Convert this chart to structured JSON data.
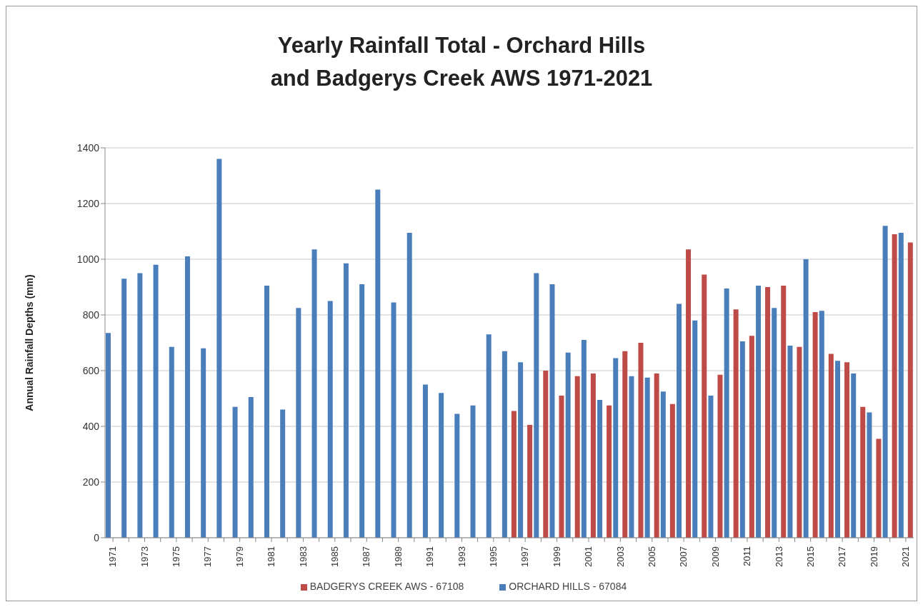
{
  "chart_data": {
    "type": "bar",
    "title": "Yearly Rainfall Total - Orchard Hills\nand Badgerys Creek AWS 1971-2021",
    "ylabel": "Annual Rainfall Depths (mm)",
    "categories": [
      "1971",
      null,
      "1973",
      null,
      "1975",
      null,
      "1977",
      null,
      "1979",
      null,
      "1981",
      null,
      "1983",
      null,
      "1985",
      null,
      "1987",
      null,
      "1989",
      null,
      "1991",
      null,
      "1993",
      null,
      "1995",
      null,
      "1997",
      null,
      "1999",
      null,
      "2001",
      null,
      "2003",
      null,
      "2005",
      null,
      "2007",
      null,
      "2009",
      null,
      "2011",
      null,
      "2013",
      null,
      "2015",
      null,
      "2017",
      null,
      "2019",
      null,
      "2021"
    ],
    "series": [
      {
        "name": "ORCHARD HILLS - 67084",
        "color": "#4a7ebb",
        "values": [
          735,
          930,
          950,
          980,
          685,
          1010,
          680,
          1360,
          470,
          505,
          905,
          460,
          825,
          1035,
          850,
          985,
          910,
          1250,
          845,
          1095,
          550,
          520,
          445,
          475,
          730,
          670,
          630,
          950,
          910,
          665,
          710,
          495,
          645,
          580,
          575,
          525,
          840,
          780,
          510,
          895,
          705,
          905,
          825,
          690,
          1000,
          815,
          635,
          590,
          450,
          1120,
          1095
        ]
      },
      {
        "name": "BADGERYS CREEK AWS - 67108",
        "color": "#be4b48",
        "values": [
          null,
          null,
          null,
          null,
          null,
          null,
          null,
          null,
          null,
          null,
          null,
          null,
          null,
          null,
          null,
          null,
          null,
          null,
          null,
          null,
          null,
          null,
          null,
          null,
          null,
          455,
          405,
          600,
          510,
          580,
          590,
          475,
          670,
          700,
          590,
          480,
          1035,
          945,
          585,
          820,
          725,
          900,
          905,
          685,
          810,
          660,
          630,
          470,
          355,
          1090,
          1060
        ]
      }
    ],
    "ylim": [
      0,
      1400
    ],
    "yticks": [
      0,
      200,
      400,
      600,
      800,
      1000,
      1200,
      1400
    ],
    "grid": "y",
    "legend": "bottom"
  }
}
